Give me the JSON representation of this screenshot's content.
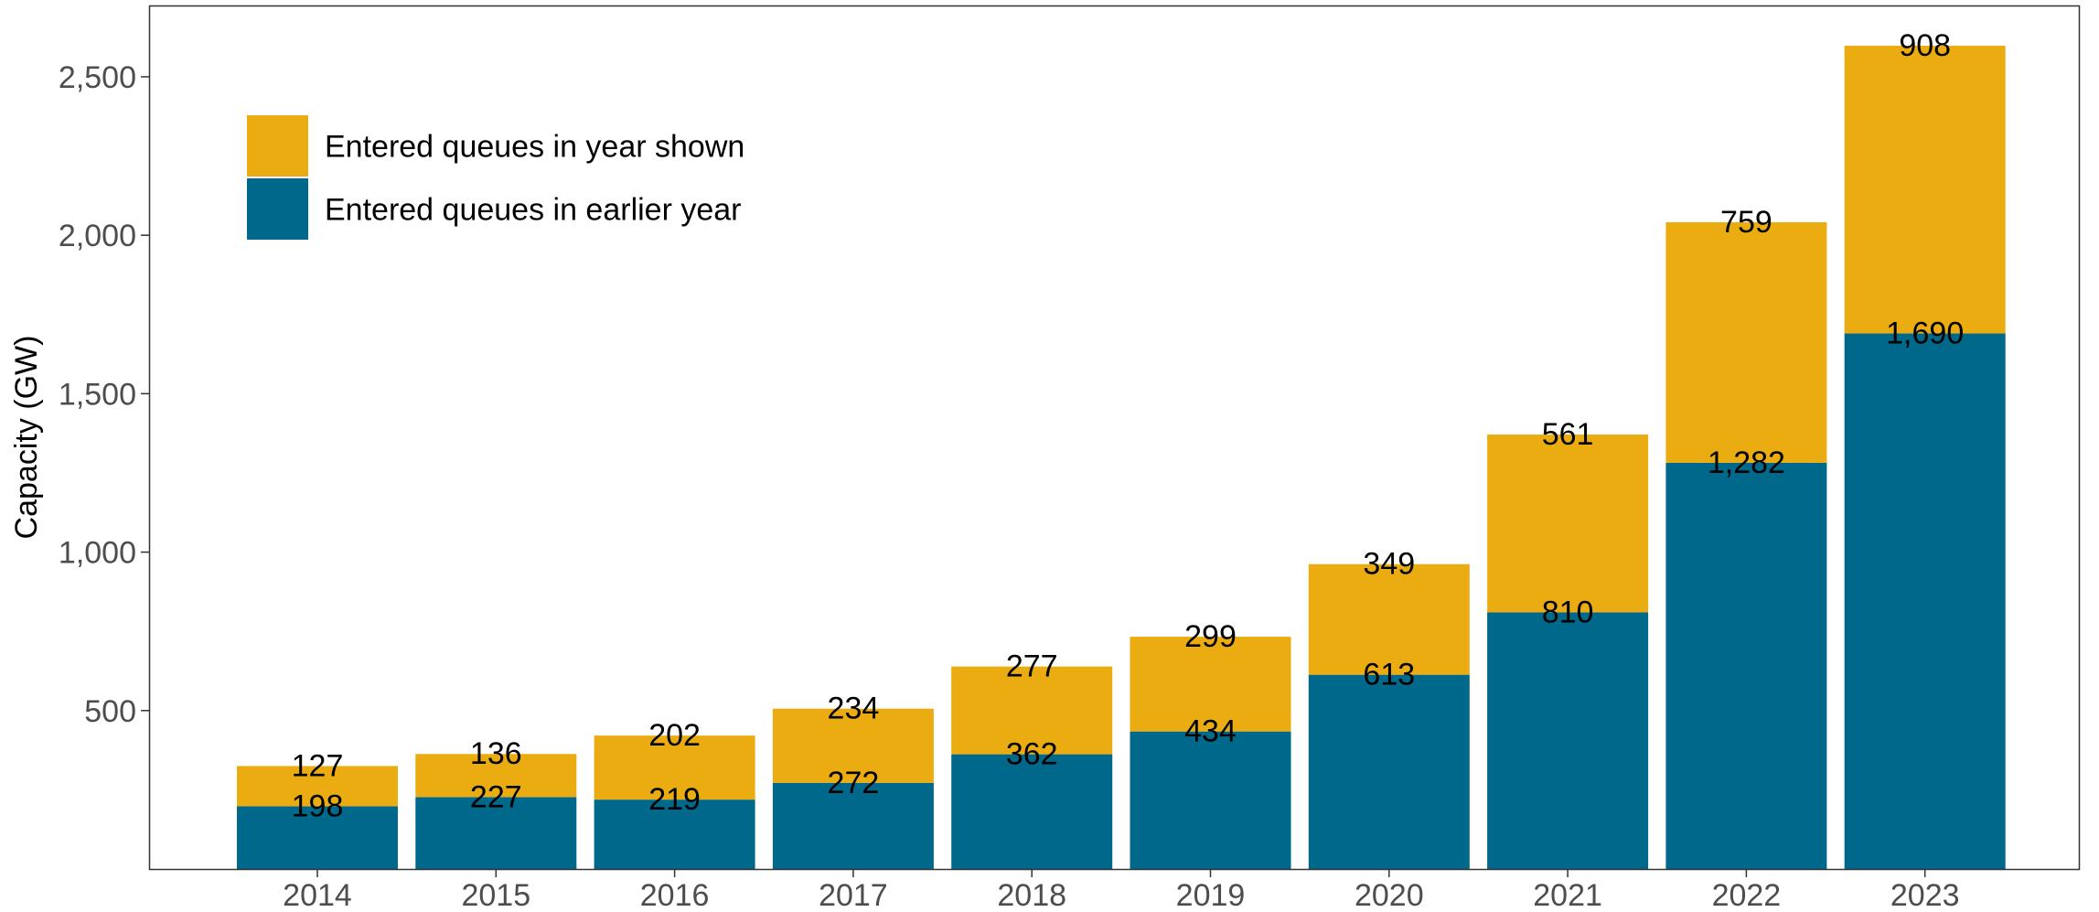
{
  "chart_data": {
    "type": "bar",
    "stacked": true,
    "categories": [
      "2014",
      "2015",
      "2016",
      "2017",
      "2018",
      "2019",
      "2020",
      "2021",
      "2022",
      "2023"
    ],
    "series": [
      {
        "name": "Entered queues in earlier year",
        "color": "#00688b",
        "values": [
          198,
          227,
          219,
          272,
          362,
          434,
          613,
          810,
          1282,
          1690
        ],
        "labels": [
          "198",
          "227",
          "219",
          "272",
          "362",
          "434",
          "613",
          "810",
          "1,282",
          "1,690"
        ]
      },
      {
        "name": "Entered queues in year shown",
        "color": "#ebac12",
        "values": [
          127,
          136,
          202,
          234,
          277,
          299,
          349,
          561,
          759,
          908
        ],
        "labels": [
          "127",
          "136",
          "202",
          "234",
          "277",
          "299",
          "349",
          "561",
          "759",
          "908"
        ]
      }
    ],
    "ylabel": "Capacity (GW)",
    "xlabel": "",
    "ylim": [
      0,
      2725
    ],
    "yticks": [
      500,
      1000,
      1500,
      2000,
      2500
    ],
    "ytick_labels": [
      "500",
      "1,000",
      "1,500",
      "2,000",
      "2,500"
    ],
    "legend": {
      "position": "top-left",
      "order": [
        "Entered queues in year shown",
        "Entered queues in earlier year"
      ]
    },
    "grid": false
  }
}
